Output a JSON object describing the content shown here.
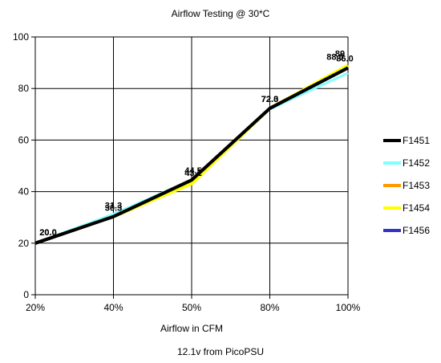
{
  "title": "Airflow Testing @ 30*C",
  "subtitle": "12.1v from PicoPSU",
  "chart_data": {
    "type": "line",
    "title": "Airflow Testing @ 30*C",
    "xlabel": "Airflow in CFM",
    "ylabel": "",
    "categories": [
      "20%",
      "40%",
      "50%",
      "80%",
      "100%"
    ],
    "y_ticks": [
      "0",
      "20",
      "40",
      "60",
      "80",
      "100"
    ],
    "ylim": [
      0,
      100
    ],
    "grid": true,
    "legend_position": "right",
    "series": [
      {
        "name": "F1451",
        "color": "#000000",
        "values": [
          20.0,
          30.3,
          44.5,
          72.3,
          88.0
        ]
      },
      {
        "name": "F1452",
        "color": "#80ffff",
        "values": [
          20.0,
          31.3,
          44.5,
          72.0,
          86.0
        ]
      },
      {
        "name": "F1453",
        "color": "#ff9900",
        "values": [
          20.0,
          30.3,
          44.5,
          72.3,
          88.0
        ]
      },
      {
        "name": "F1454",
        "color": "#ffff00",
        "values": [
          20.0,
          30.3,
          43.1,
          72.3,
          89.0
        ]
      },
      {
        "name": "F1456",
        "color": "#3333cc",
        "values": [
          20.0,
          30.3,
          44.5,
          72.3,
          88.0
        ]
      }
    ],
    "data_labels": [
      {
        "category": "20%",
        "texts": [
          "20.0",
          "20.0"
        ]
      },
      {
        "category": "40%",
        "texts": [
          "31.3",
          "30.3"
        ]
      },
      {
        "category": "50%",
        "texts": [
          "44.5",
          "43.1"
        ]
      },
      {
        "category": "80%",
        "texts": [
          "72.3",
          "72.0"
        ]
      },
      {
        "category": "100%",
        "texts": [
          "88.0",
          "89",
          "86.0"
        ]
      }
    ]
  }
}
